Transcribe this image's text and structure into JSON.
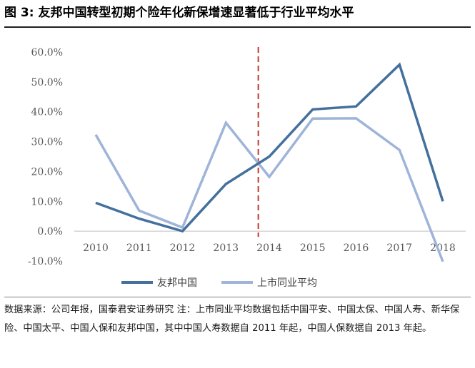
{
  "figure": {
    "title": "图 3: 友邦中国转型初期个险年化新保增速显著低于行业平均水平",
    "source_note": "数据来源：公司年报，国泰君安证券研究 注：上市同业平均数据包括中国平安、中国太保、中国人寿、新华保险、中国太平、中国人保和友邦中国，其中中国人寿数据自 2011 年起，中国人保数据自 2013 年起。"
  },
  "colors": {
    "series_dark": "#44709d",
    "series_light": "#9fb4d9",
    "reference_line": "#c0392b",
    "axis": "#bfbfbf"
  },
  "chart_data": {
    "type": "line",
    "title": "",
    "xlabel": "",
    "ylabel": "",
    "categories": [
      "2010",
      "2011",
      "2012",
      "2013",
      "2014",
      "2015",
      "2016",
      "2017",
      "2018"
    ],
    "ylim": [
      -10,
      60
    ],
    "yticks": [
      60,
      50,
      40,
      30,
      20,
      10,
      0,
      -10
    ],
    "ytick_labels": [
      "60.0%",
      "50.0%",
      "40.0%",
      "30.0%",
      "20.0%",
      "10.0%",
      "0.0%",
      "-10.0%"
    ],
    "grid": false,
    "legend_position": "bottom",
    "reference_line": {
      "between": [
        "2013",
        "2014"
      ],
      "style": "dashed"
    },
    "series": [
      {
        "name": "友邦中国",
        "color": "#44709d",
        "values": [
          9.5,
          4.2,
          0.0,
          15.8,
          25.0,
          40.8,
          41.8,
          55.8,
          10.0
        ]
      },
      {
        "name": "上市同业平均",
        "color": "#9fb4d9",
        "values": [
          32.3,
          6.9,
          1.2,
          36.3,
          18.2,
          37.7,
          37.8,
          27.2,
          -10.2
        ]
      }
    ]
  }
}
